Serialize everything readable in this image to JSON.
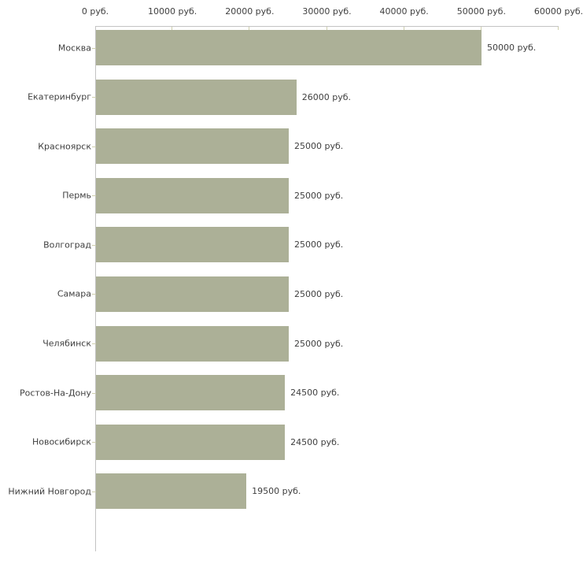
{
  "chart_data": {
    "type": "bar",
    "orientation": "horizontal",
    "title": "",
    "xlabel": "",
    "ylabel": "",
    "unit": "руб.",
    "categories": [
      "Москва",
      "Екатеринбург",
      "Красноярск",
      "Пермь",
      "Волгоград",
      "Самара",
      "Челябинск",
      "Ростов-На-Дону",
      "Новосибирск",
      "Нижний Новгород"
    ],
    "values": [
      50000,
      26000,
      25000,
      25000,
      25000,
      25000,
      25000,
      24500,
      24500,
      19500
    ],
    "value_labels": [
      "50000 руб.",
      "26000 руб.",
      "25000 руб.",
      "25000 руб.",
      "25000 руб.",
      "25000 руб.",
      "25000 руб.",
      "24500 руб.",
      "24500 руб.",
      "19500 руб."
    ],
    "x_axis": {
      "position": "top",
      "min": 0,
      "max": 60000,
      "ticks": [
        0,
        10000,
        20000,
        30000,
        40000,
        50000,
        60000
      ],
      "tick_labels": [
        "0 руб.",
        "10000 руб.",
        "20000 руб.",
        "30000 руб.",
        "40000 руб.",
        "50000 руб.",
        "60000 руб."
      ]
    },
    "grid": false,
    "legend": false,
    "colors": {
      "bar_fill": "#acb097",
      "axis_line": "#c3c3c3",
      "tick_mark": "#cfcfae",
      "text": "#3f3f3f",
      "background": "#ffffff"
    }
  }
}
